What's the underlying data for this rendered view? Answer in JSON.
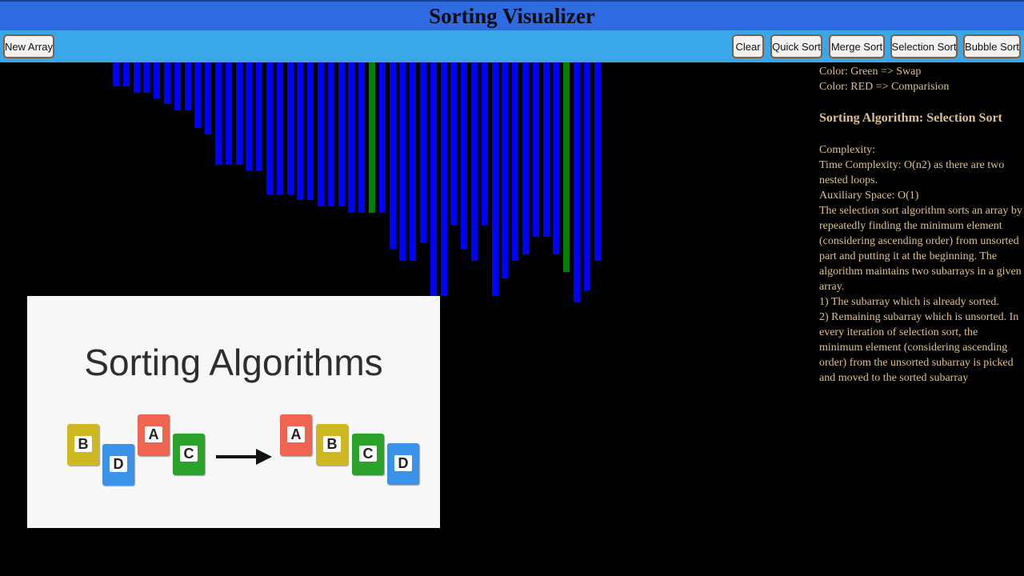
{
  "app": {
    "title": "Sorting Visualizer"
  },
  "toolbar": {
    "new_array": "New Array",
    "clear": "Clear",
    "quick_sort": "Quick Sort",
    "merge_sort": "Merge Sort",
    "selection_sort": "Selection Sort",
    "bubble_sort": "Bubble Sort"
  },
  "colors": {
    "title_bar": "#2f6be0",
    "toolbar": "#3aa8e8",
    "bar_default": "#0000ff",
    "bar_swap": "#008000",
    "info_text": "#e0c08a"
  },
  "bars": [
    {
      "value": 30,
      "state": "default"
    },
    {
      "value": 30,
      "state": "default"
    },
    {
      "value": 38,
      "state": "default"
    },
    {
      "value": 38,
      "state": "default"
    },
    {
      "value": 45,
      "state": "default"
    },
    {
      "value": 52,
      "state": "default"
    },
    {
      "value": 60,
      "state": "default"
    },
    {
      "value": 60,
      "state": "default"
    },
    {
      "value": 82,
      "state": "default"
    },
    {
      "value": 90,
      "state": "default"
    },
    {
      "value": 128,
      "state": "default"
    },
    {
      "value": 128,
      "state": "default"
    },
    {
      "value": 128,
      "state": "default"
    },
    {
      "value": 135,
      "state": "default"
    },
    {
      "value": 135,
      "state": "default"
    },
    {
      "value": 165,
      "state": "default"
    },
    {
      "value": 165,
      "state": "default"
    },
    {
      "value": 165,
      "state": "default"
    },
    {
      "value": 172,
      "state": "default"
    },
    {
      "value": 172,
      "state": "default"
    },
    {
      "value": 180,
      "state": "default"
    },
    {
      "value": 180,
      "state": "default"
    },
    {
      "value": 180,
      "state": "default"
    },
    {
      "value": 188,
      "state": "default"
    },
    {
      "value": 188,
      "state": "default"
    },
    {
      "value": 188,
      "state": "swap"
    },
    {
      "value": 188,
      "state": "default"
    },
    {
      "value": 233,
      "state": "default"
    },
    {
      "value": 248,
      "state": "default"
    },
    {
      "value": 248,
      "state": "default"
    },
    {
      "value": 225,
      "state": "default"
    },
    {
      "value": 300,
      "state": "default"
    },
    {
      "value": 292,
      "state": "default"
    },
    {
      "value": 203,
      "state": "default"
    },
    {
      "value": 233,
      "state": "default"
    },
    {
      "value": 248,
      "state": "default"
    },
    {
      "value": 203,
      "state": "default"
    },
    {
      "value": 292,
      "state": "default"
    },
    {
      "value": 270,
      "state": "default"
    },
    {
      "value": 248,
      "state": "default"
    },
    {
      "value": 240,
      "state": "default"
    },
    {
      "value": 218,
      "state": "default"
    },
    {
      "value": 218,
      "state": "default"
    },
    {
      "value": 240,
      "state": "default"
    },
    {
      "value": 262,
      "state": "swap"
    },
    {
      "value": 300,
      "state": "default"
    },
    {
      "value": 285,
      "state": "default"
    },
    {
      "value": 248,
      "state": "default"
    }
  ],
  "info": {
    "legend_swap": "Color: Green => Swap",
    "legend_compare": "Color: RED => Comparision",
    "algorithm_heading": "Sorting Algorithm: Selection Sort",
    "complexity_label": "Complexity:",
    "time_complexity": "Time Complexity: O(n2) as there are two nested loops.",
    "aux_space": "Auxiliary Space: O(1)",
    "description": "The selection sort algorithm sorts an array by repeatedly finding the minimum element (considering ascending order) from unsorted part and putting it at the beginning. The algorithm maintains two subarrays in a given array.",
    "point1": "1) The subarray which is already sorted.",
    "point2": "2) Remaining subarray which is unsorted. In every iteration of selection sort, the minimum element (considering ascending order) from the unsorted subarray is picked and moved to the sorted subarray"
  },
  "thumbnail": {
    "title": "Sorting Algorithms",
    "cards_before": [
      {
        "letter": "B",
        "color": "#cdb822"
      },
      {
        "letter": "D",
        "color": "#3a93e8"
      },
      {
        "letter": "A",
        "color": "#f06452"
      },
      {
        "letter": "C",
        "color": "#2aa329"
      }
    ],
    "cards_after": [
      {
        "letter": "A",
        "color": "#f06452"
      },
      {
        "letter": "B",
        "color": "#cdb822"
      },
      {
        "letter": "C",
        "color": "#2aa329"
      },
      {
        "letter": "D",
        "color": "#3a93e8"
      }
    ]
  }
}
